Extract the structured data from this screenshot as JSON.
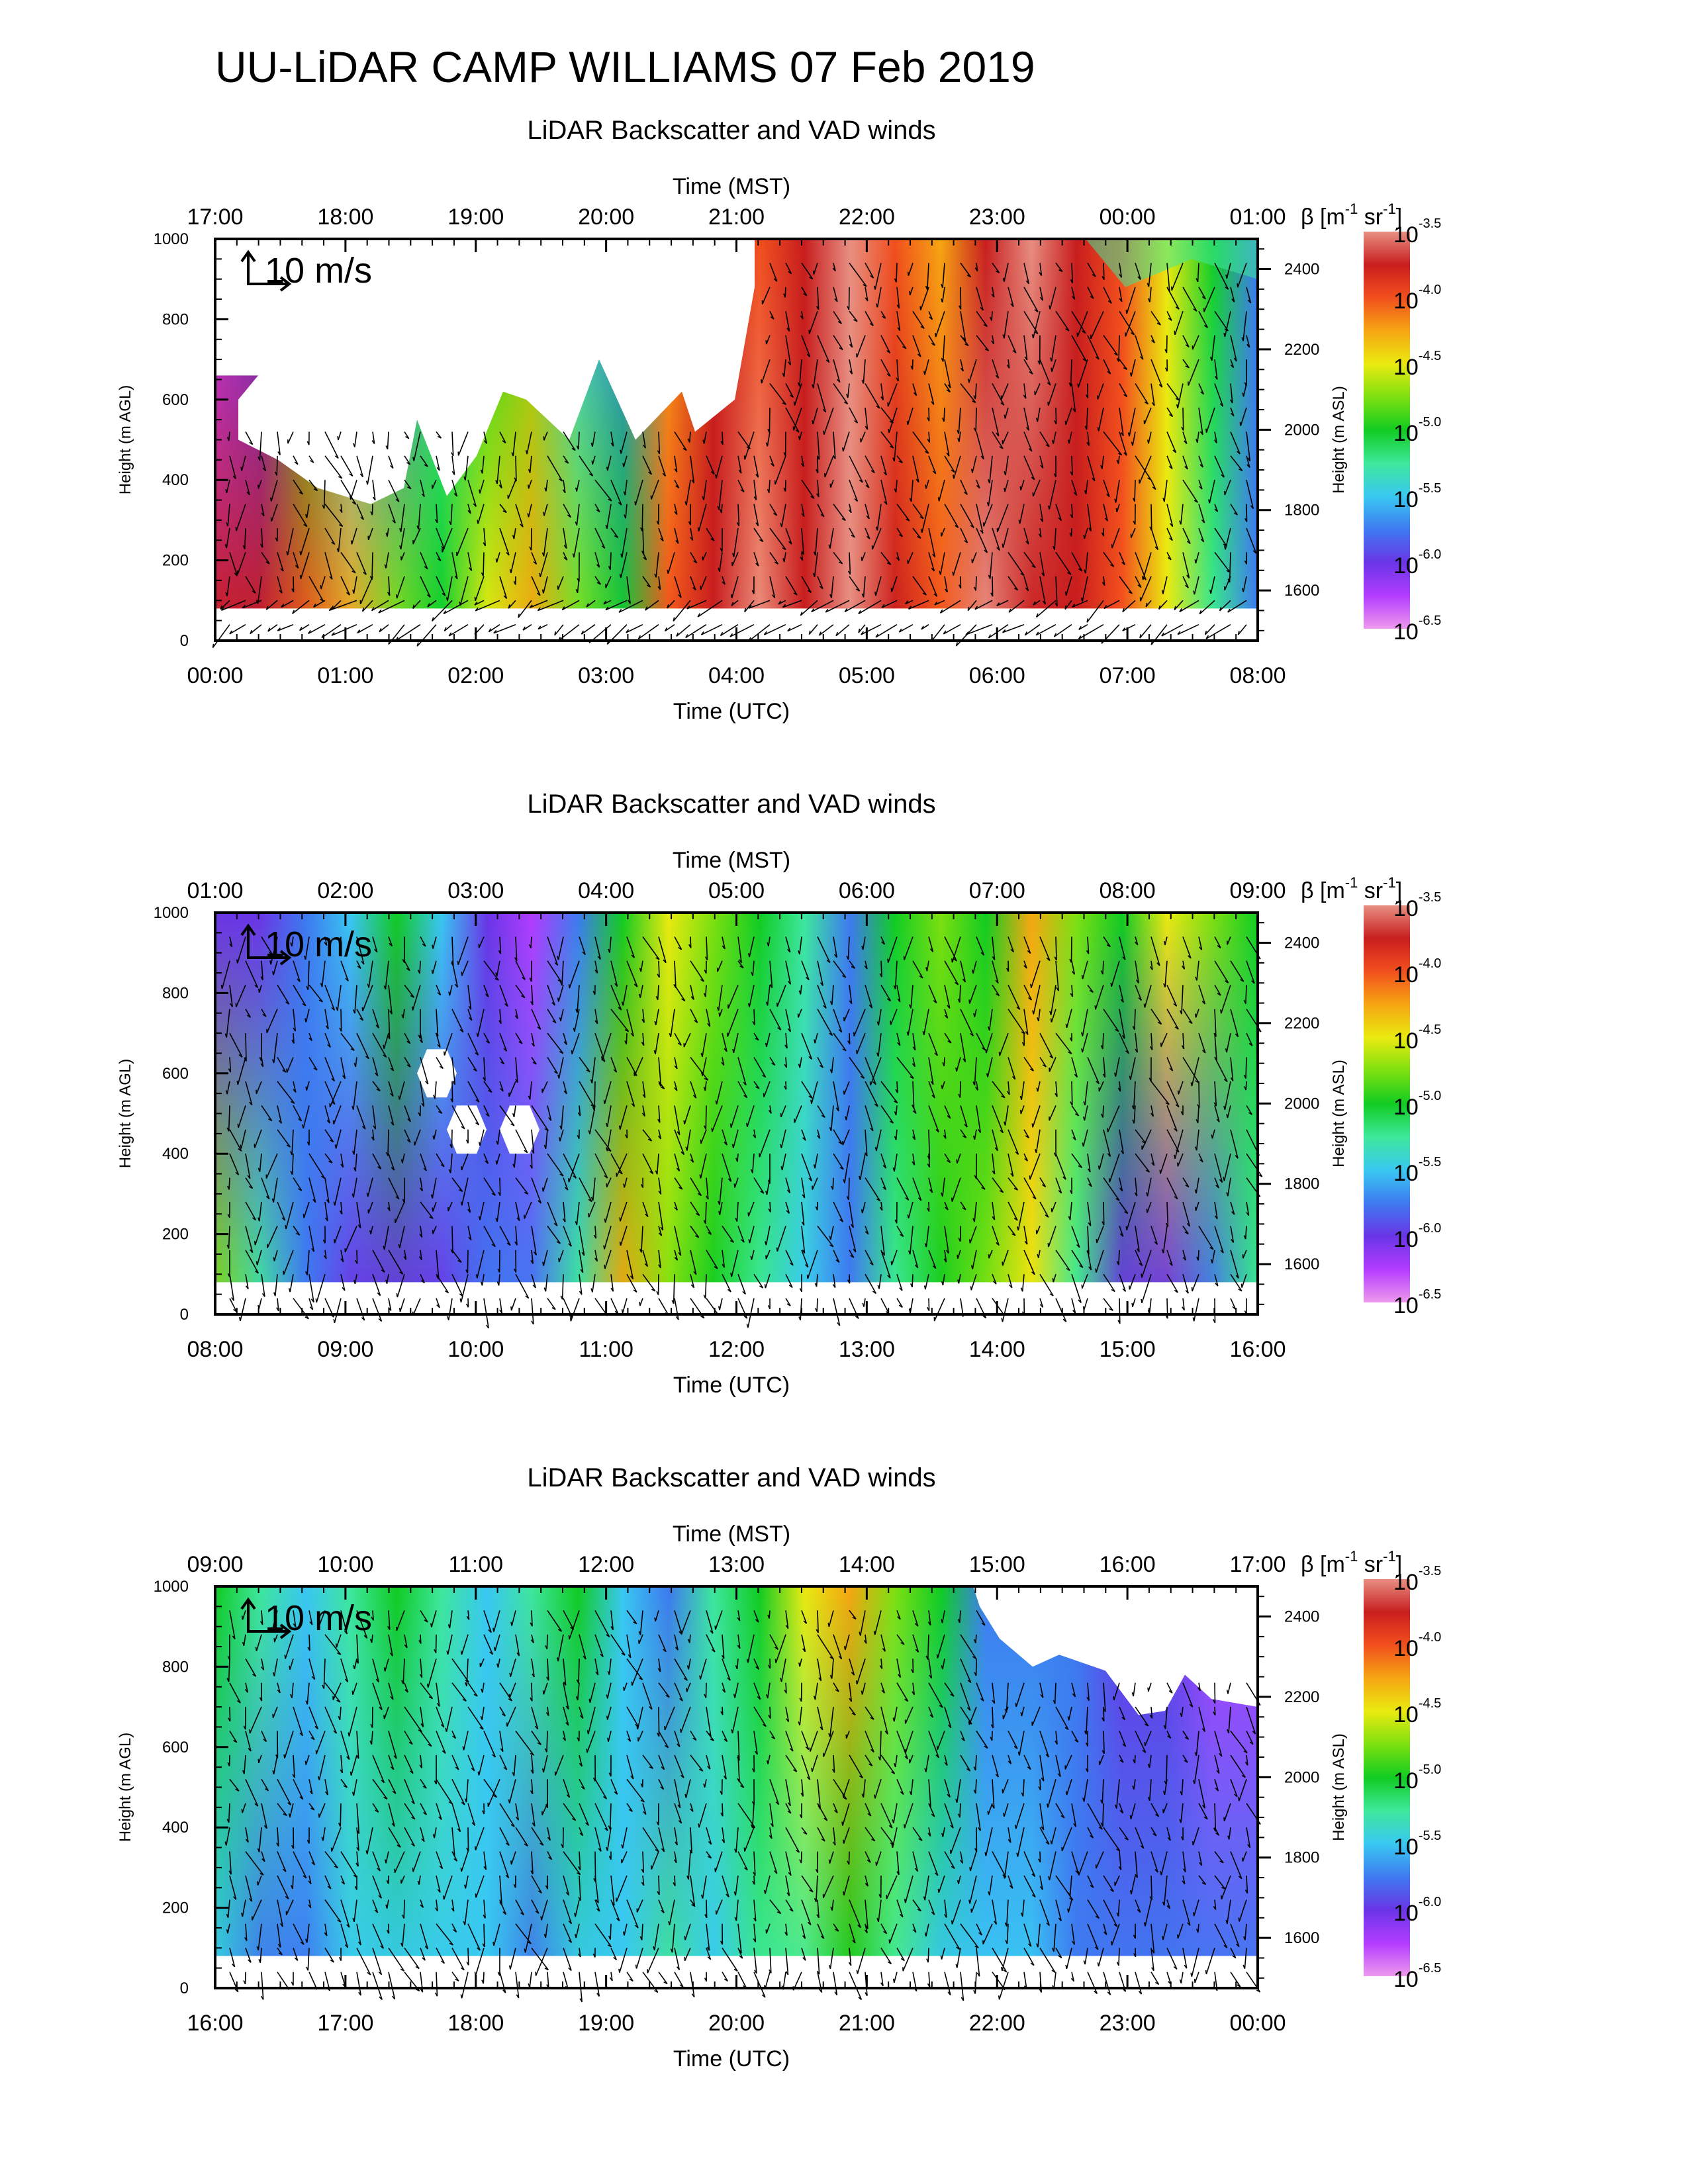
{
  "main_title": "UU-LiDAR CAMP WILLIAMS 07 Feb 2019",
  "colors": {
    "colorbar": [
      "#ee99ee",
      "#b33cff",
      "#6a35e6",
      "#3e7af0",
      "#39c8f2",
      "#3ee89b",
      "#11cc22",
      "#7de010",
      "#eaea10",
      "#f6a612",
      "#f2501e",
      "#c81e1e",
      "#e88f82"
    ],
    "vector": "#000000"
  },
  "chart_data": [
    {
      "type": "heatmap",
      "title": "LiDAR Backscatter and VAD winds",
      "x_top_label": "Time (MST)",
      "x_bottom_label": "Time (UTC)",
      "x_top_ticks": [
        "17:00",
        "18:00",
        "19:00",
        "20:00",
        "21:00",
        "22:00",
        "23:00",
        "00:00",
        "01:00"
      ],
      "x_bottom_ticks": [
        "00:00",
        "01:00",
        "02:00",
        "03:00",
        "04:00",
        "05:00",
        "06:00",
        "07:00",
        "08:00"
      ],
      "ylabel": "Height (m AGL)",
      "y2label": "Height (m ASL)",
      "y_ticks": [
        "0",
        "200",
        "400",
        "600",
        "800",
        "1000"
      ],
      "y2_ticks": [
        "1600",
        "1800",
        "2000",
        "2200",
        "2400"
      ],
      "ylim": [
        0,
        1000
      ],
      "reference_vector_label": "10 m/s",
      "colorbar": {
        "label_base": "β [m",
        "exp1": "-1",
        "mid": " sr",
        "exp2": "-1",
        "end": "]",
        "tick_base": "10",
        "tick_exponents": [
          "-3.5",
          "-4.0",
          "-4.5",
          "-5.0",
          "-5.5",
          "-6.0",
          "-6.5"
        ]
      },
      "grid": false
    },
    {
      "type": "heatmap",
      "title": "LiDAR Backscatter and VAD winds",
      "x_top_label": "Time (MST)",
      "x_bottom_label": "Time (UTC)",
      "x_top_ticks": [
        "01:00",
        "02:00",
        "03:00",
        "04:00",
        "05:00",
        "06:00",
        "07:00",
        "08:00",
        "09:00"
      ],
      "x_bottom_ticks": [
        "08:00",
        "09:00",
        "10:00",
        "11:00",
        "12:00",
        "13:00",
        "14:00",
        "15:00",
        "16:00"
      ],
      "ylabel": "Height (m AGL)",
      "y2label": "Height (m ASL)",
      "y_ticks": [
        "0",
        "200",
        "400",
        "600",
        "800",
        "1000"
      ],
      "y2_ticks": [
        "1600",
        "1800",
        "2000",
        "2200",
        "2400"
      ],
      "ylim": [
        0,
        1000
      ],
      "reference_vector_label": "10 m/s",
      "colorbar": {
        "label_base": "β [m",
        "exp1": "-1",
        "mid": " sr",
        "exp2": "-1",
        "end": "]",
        "tick_base": "10",
        "tick_exponents": [
          "-3.5",
          "-4.0",
          "-4.5",
          "-5.0",
          "-5.5",
          "-6.0",
          "-6.5"
        ]
      },
      "grid": false
    },
    {
      "type": "heatmap",
      "title": "LiDAR Backscatter and VAD winds",
      "x_top_label": "Time (MST)",
      "x_bottom_label": "Time (UTC)",
      "x_top_ticks": [
        "09:00",
        "10:00",
        "11:00",
        "12:00",
        "13:00",
        "14:00",
        "15:00",
        "16:00",
        "17:00"
      ],
      "x_bottom_ticks": [
        "16:00",
        "17:00",
        "18:00",
        "19:00",
        "20:00",
        "21:00",
        "22:00",
        "23:00",
        "00:00"
      ],
      "ylabel": "Height (m AGL)",
      "y2label": "Height (m ASL)",
      "y_ticks": [
        "0",
        "200",
        "400",
        "600",
        "800",
        "1000"
      ],
      "y2_ticks": [
        "1600",
        "1800",
        "2000",
        "2200",
        "2400"
      ],
      "ylim": [
        0,
        1000
      ],
      "reference_vector_label": "10 m/s",
      "colorbar": {
        "label_base": "β [m",
        "exp1": "-1",
        "mid": " sr",
        "exp2": "-1",
        "end": "]",
        "tick_base": "10",
        "tick_exponents": [
          "-3.5",
          "-4.0",
          "-4.5",
          "-5.0",
          "-5.5",
          "-6.0",
          "-6.5"
        ]
      },
      "grid": false
    }
  ]
}
